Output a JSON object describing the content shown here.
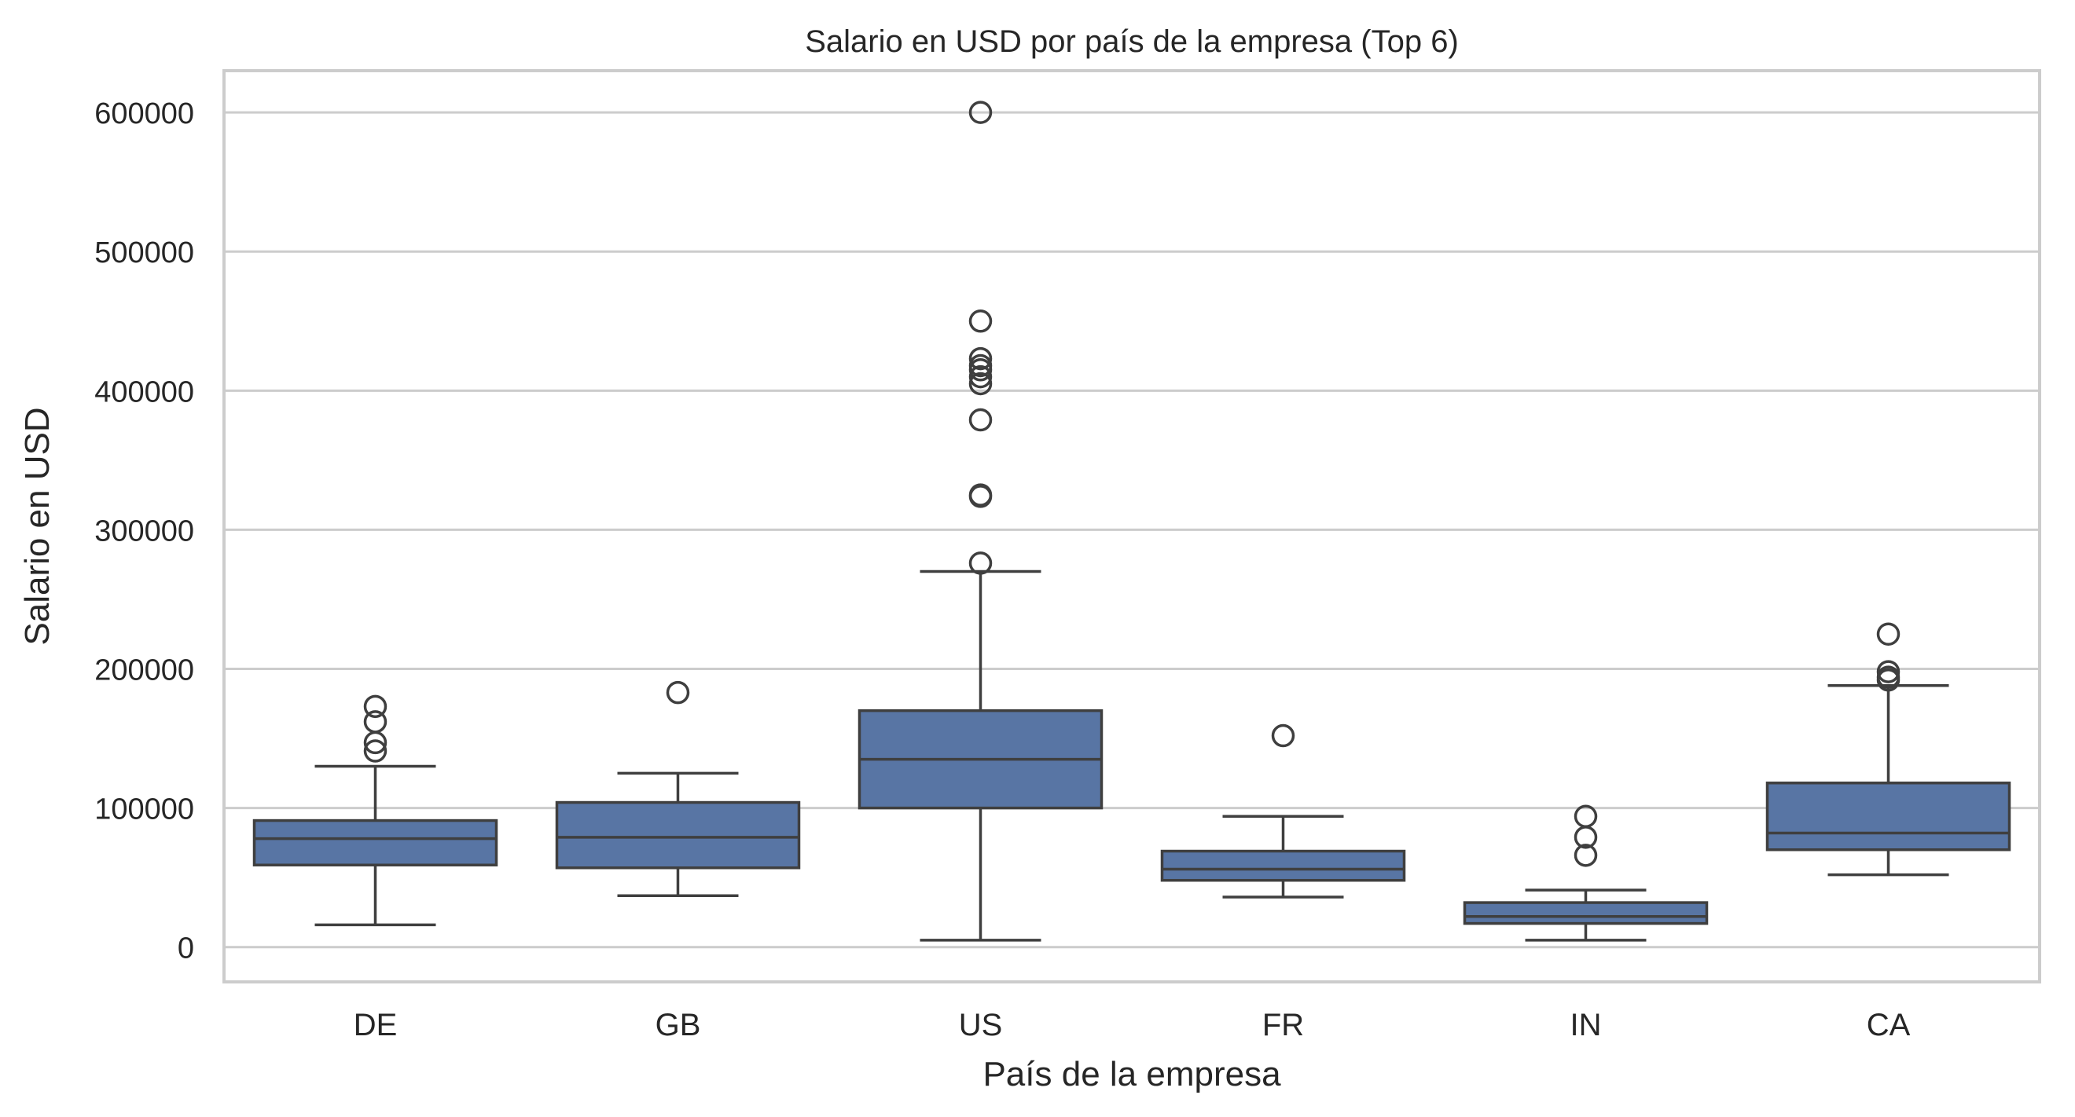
{
  "chart_data": {
    "type": "box",
    "title": "Salario en USD por país de la empresa (Top 6)",
    "xlabel": "País de la empresa",
    "ylabel": "Salario en USD",
    "ylim": [
      -25000,
      630000
    ],
    "yticks": [
      0,
      100000,
      200000,
      300000,
      400000,
      500000,
      600000
    ],
    "ytick_labels": [
      "0",
      "100000",
      "200000",
      "300000",
      "400000",
      "500000",
      "600000"
    ],
    "grid": "horizontal",
    "box_color": "#5875A4",
    "categories": [
      "DE",
      "GB",
      "US",
      "FR",
      "IN",
      "CA"
    ],
    "boxes": [
      {
        "category": "DE",
        "whisker_low": 16000,
        "q1": 59000,
        "median": 78000,
        "q3": 91000,
        "whisker_high": 130000,
        "outliers": [
          141000,
          147000,
          162000,
          173000
        ]
      },
      {
        "category": "GB",
        "whisker_low": 37000,
        "q1": 57000,
        "median": 79000,
        "q3": 104000,
        "whisker_high": 125000,
        "outliers": [
          183000
        ]
      },
      {
        "category": "US",
        "whisker_low": 5000,
        "q1": 100000,
        "median": 135000,
        "q3": 170000,
        "whisker_high": 270000,
        "outliers": [
          276000,
          324000,
          325000,
          379000,
          405000,
          410000,
          415000,
          418000,
          423000,
          450000,
          600000
        ]
      },
      {
        "category": "FR",
        "whisker_low": 36000,
        "q1": 48000,
        "median": 56000,
        "q3": 69000,
        "whisker_high": 94000,
        "outliers": [
          152000
        ]
      },
      {
        "category": "IN",
        "whisker_low": 5000,
        "q1": 17000,
        "median": 22000,
        "q3": 32000,
        "whisker_high": 41000,
        "outliers": [
          66000,
          79000,
          94000
        ]
      },
      {
        "category": "CA",
        "whisker_low": 52000,
        "q1": 70000,
        "median": 82000,
        "q3": 118000,
        "whisker_high": 188000,
        "outliers": [
          192000,
          194000,
          198000,
          225000
        ]
      }
    ]
  }
}
